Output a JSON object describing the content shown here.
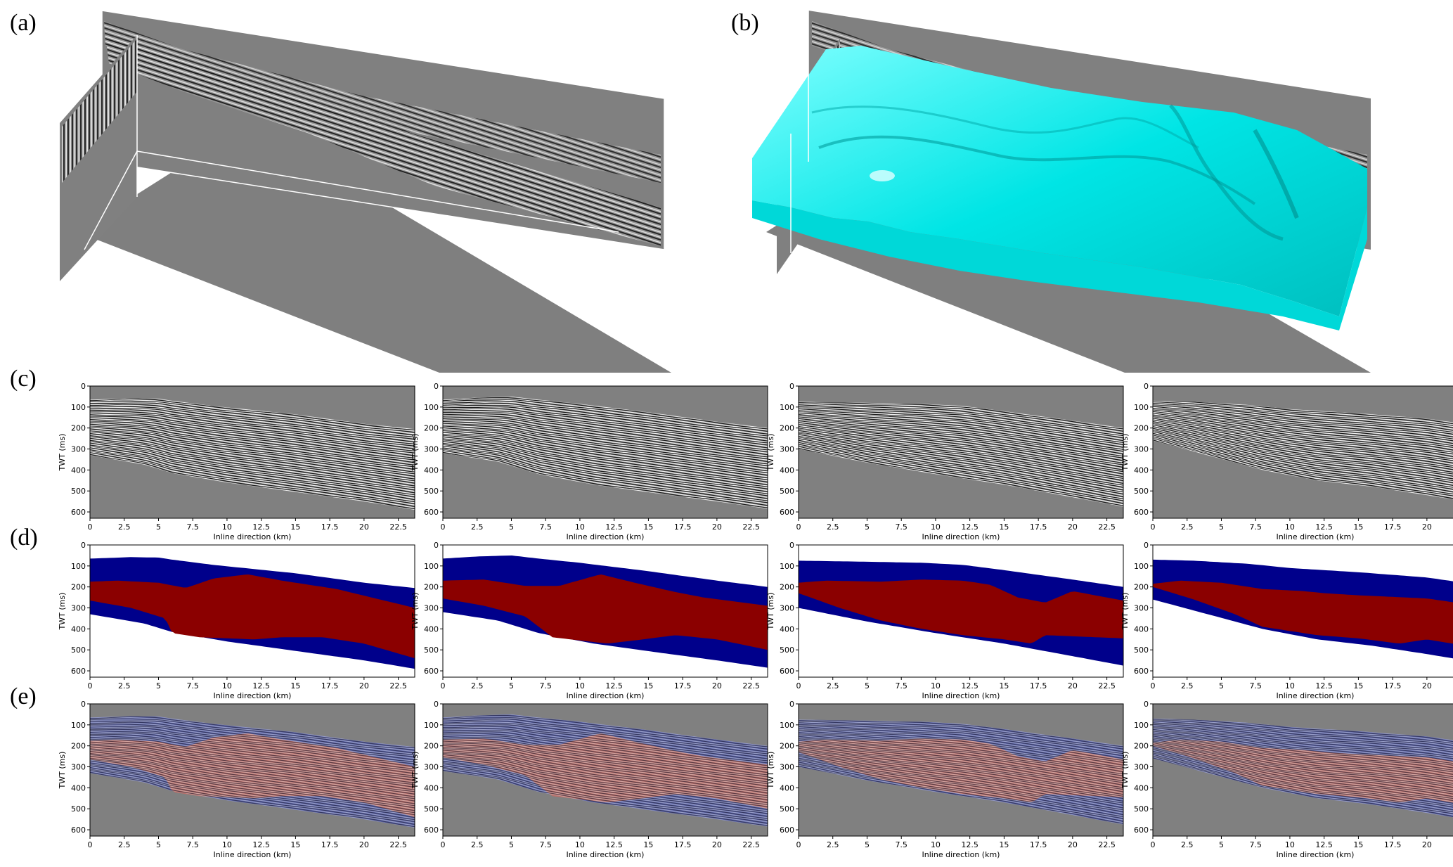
{
  "labels": {
    "a": "(a)",
    "b": "(b)",
    "c": "(c)",
    "d": "(d)",
    "e": "(e)"
  },
  "colors": {
    "seismic_bg": "#808080",
    "surface": "#00ffff",
    "label_upper": "#00008b",
    "label_lower": "#8b0000",
    "label_bg": "#ffffff"
  },
  "axes": {
    "y_label": "TWT (ms)",
    "x_label": "Inline direction (km)",
    "y_ticks": [
      "0",
      "100",
      "200",
      "300",
      "400",
      "500",
      "600"
    ],
    "x_ticks": [
      "0",
      "2.5",
      "5",
      "7.5",
      "10",
      "12.5",
      "15",
      "17.5",
      "20",
      "22.5"
    ],
    "x_range_km": [
      0,
      23.7
    ],
    "y_range_ms": [
      0,
      630
    ]
  },
  "rows": [
    {
      "id": "c",
      "kind": "seismic"
    },
    {
      "id": "d",
      "kind": "facies"
    },
    {
      "id": "e",
      "kind": "overlay"
    }
  ],
  "sections": [
    {
      "top": [
        [
          0,
          65
        ],
        [
          3,
          58
        ],
        [
          5,
          60
        ],
        [
          6,
          70
        ],
        [
          9,
          95
        ],
        [
          15,
          135
        ],
        [
          20,
          180
        ],
        [
          23.7,
          205
        ]
      ],
      "mid": [
        [
          0,
          175
        ],
        [
          2,
          170
        ],
        [
          5,
          180
        ],
        [
          7,
          205
        ],
        [
          9,
          160
        ],
        [
          11.5,
          140
        ],
        [
          14,
          170
        ],
        [
          17,
          200
        ],
        [
          18,
          210
        ],
        [
          23.7,
          300
        ]
      ],
      "bot": [
        [
          0,
          265
        ],
        [
          3,
          300
        ],
        [
          5.5,
          350
        ],
        [
          6,
          420
        ],
        [
          8,
          440
        ],
        [
          12,
          450
        ],
        [
          14,
          440
        ],
        [
          17,
          440
        ],
        [
          20,
          470
        ],
        [
          23.7,
          540
        ]
      ],
      "base": [
        [
          0,
          330
        ],
        [
          4,
          375
        ],
        [
          6,
          415
        ],
        [
          10,
          460
        ],
        [
          15,
          505
        ],
        [
          20,
          550
        ],
        [
          23.7,
          590
        ]
      ]
    },
    {
      "top": [
        [
          0,
          65
        ],
        [
          2.5,
          55
        ],
        [
          5,
          50
        ],
        [
          7,
          65
        ],
        [
          10,
          85
        ],
        [
          15,
          125
        ],
        [
          20,
          170
        ],
        [
          23.7,
          200
        ]
      ],
      "mid": [
        [
          0,
          170
        ],
        [
          3,
          165
        ],
        [
          6,
          195
        ],
        [
          8.5,
          195
        ],
        [
          11.5,
          140
        ],
        [
          14,
          180
        ],
        [
          17,
          225
        ],
        [
          19,
          250
        ],
        [
          23.7,
          290
        ]
      ],
      "bot": [
        [
          0,
          255
        ],
        [
          3,
          290
        ],
        [
          6,
          340
        ],
        [
          8,
          440
        ],
        [
          12,
          470
        ],
        [
          14,
          455
        ],
        [
          17,
          430
        ],
        [
          20,
          450
        ],
        [
          23.7,
          500
        ]
      ],
      "base": [
        [
          0,
          320
        ],
        [
          4,
          360
        ],
        [
          7,
          420
        ],
        [
          11,
          470
        ],
        [
          16,
          515
        ],
        [
          20,
          550
        ],
        [
          23.7,
          585
        ]
      ]
    },
    {
      "top": [
        [
          0,
          75
        ],
        [
          5,
          80
        ],
        [
          9,
          85
        ],
        [
          12,
          95
        ],
        [
          15,
          120
        ],
        [
          20,
          165
        ],
        [
          23.7,
          200
        ]
      ],
      "mid": [
        [
          0,
          180
        ],
        [
          2,
          170
        ],
        [
          6,
          175
        ],
        [
          9,
          165
        ],
        [
          12,
          170
        ],
        [
          14,
          190
        ],
        [
          16,
          250
        ],
        [
          18,
          275
        ],
        [
          20,
          220
        ],
        [
          23.7,
          265
        ]
      ],
      "bot": [
        [
          0,
          230
        ],
        [
          3,
          300
        ],
        [
          6,
          360
        ],
        [
          9,
          400
        ],
        [
          12,
          430
        ],
        [
          15,
          450
        ],
        [
          17,
          470
        ],
        [
          18,
          430
        ],
        [
          23.7,
          445
        ]
      ],
      "base": [
        [
          0,
          300
        ],
        [
          5,
          365
        ],
        [
          10,
          420
        ],
        [
          15,
          470
        ],
        [
          20,
          530
        ],
        [
          23.7,
          575
        ]
      ]
    },
    {
      "top": [
        [
          0,
          70
        ],
        [
          3,
          75
        ],
        [
          7,
          90
        ],
        [
          10,
          110
        ],
        [
          15,
          130
        ],
        [
          20,
          155
        ],
        [
          23.7,
          190
        ]
      ],
      "mid": [
        [
          0,
          185
        ],
        [
          2,
          170
        ],
        [
          5,
          180
        ],
        [
          8,
          210
        ],
        [
          11,
          220
        ],
        [
          12.5,
          230
        ],
        [
          15,
          240
        ],
        [
          20,
          255
        ],
        [
          23.7,
          290
        ]
      ],
      "bot": [
        [
          0,
          200
        ],
        [
          3,
          260
        ],
        [
          6,
          330
        ],
        [
          8,
          390
        ],
        [
          12,
          430
        ],
        [
          15,
          445
        ],
        [
          18,
          470
        ],
        [
          20,
          450
        ],
        [
          23.7,
          490
        ]
      ],
      "base": [
        [
          0,
          260
        ],
        [
          4,
          330
        ],
        [
          8,
          400
        ],
        [
          12,
          450
        ],
        [
          16,
          480
        ],
        [
          20,
          520
        ],
        [
          23.7,
          560
        ]
      ]
    }
  ]
}
